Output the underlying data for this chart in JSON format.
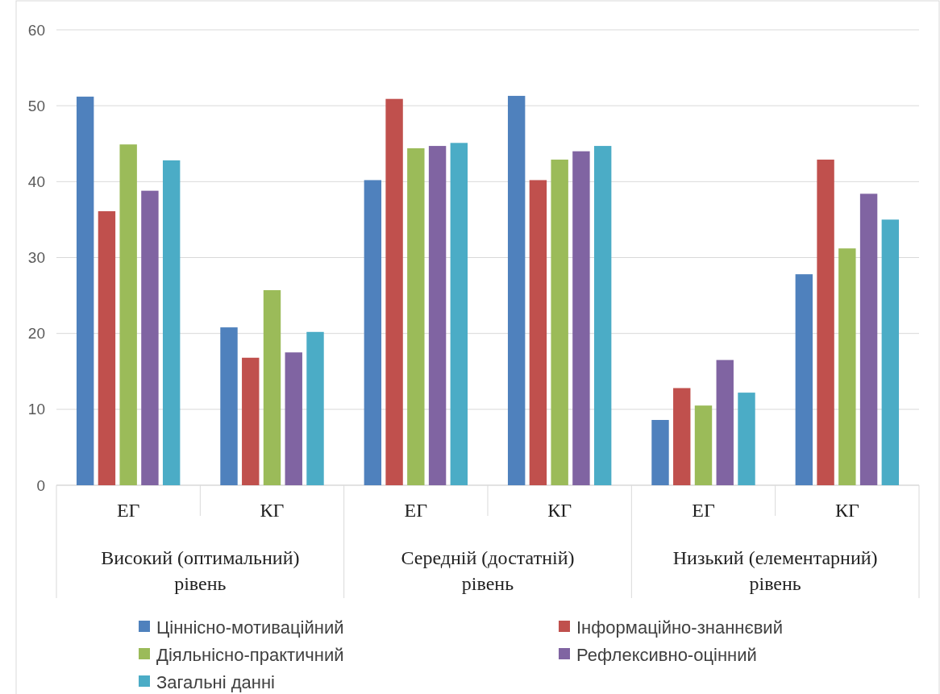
{
  "chart_data": {
    "type": "bar",
    "categories": [
      "ЕГ",
      "КГ",
      "ЕГ",
      "КГ",
      "ЕГ",
      "КГ"
    ],
    "series": [
      {
        "name": "Ціннісно-мотиваційний",
        "color": "#4f81bd",
        "values": [
          51.2,
          20.8,
          40.2,
          51.3,
          8.6,
          27.8
        ]
      },
      {
        "name": "Інформаційно-знаннєвий",
        "color": "#c0504d",
        "values": [
          36.1,
          16.8,
          50.9,
          40.2,
          12.8,
          42.9
        ]
      },
      {
        "name": "Діяльнісно-практичний",
        "color": "#9bbb59",
        "values": [
          44.9,
          25.7,
          44.4,
          42.9,
          10.5,
          31.2
        ]
      },
      {
        "name": "Рефлексивно-оцінний",
        "color": "#8064a2",
        "values": [
          38.8,
          17.5,
          44.7,
          44.0,
          16.5,
          38.4
        ]
      },
      {
        "name": "Загальні данні",
        "color": "#4bacc6",
        "values": [
          42.8,
          20.2,
          45.1,
          44.7,
          12.2,
          35.0
        ]
      }
    ],
    "annotations": [
      "Високий (оптимальний) рівень",
      "Середній (достатній) рівень",
      "Низький (елементарний) рівень"
    ],
    "ylim": [
      0,
      60
    ],
    "yticks": [
      0,
      10,
      20,
      30,
      40,
      50,
      60
    ],
    "grid": "y",
    "legend": "bottom"
  }
}
